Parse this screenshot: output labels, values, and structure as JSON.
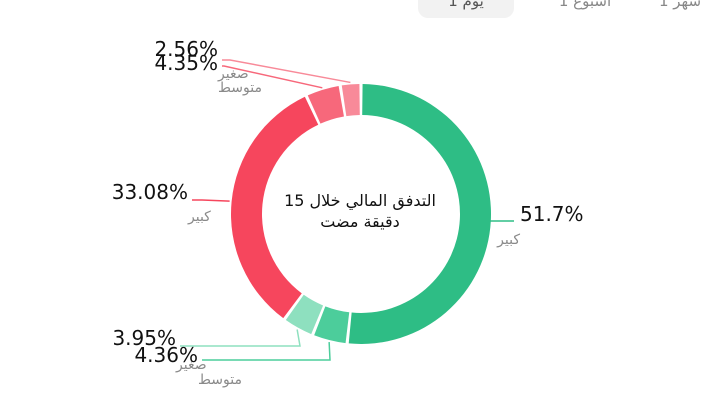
{
  "time_tabs": [
    {
      "label": "1 يوم",
      "active": true
    },
    {
      "label": "1 أسبوع",
      "active": false
    },
    {
      "label": "1 شهر",
      "active": false
    }
  ],
  "chart_data": {
    "type": "pie",
    "donut": true,
    "center_text": [
      "التدفق المالي خلال 15",
      "دقيقة مضت"
    ],
    "slices": [
      {
        "key": "inflow_large",
        "value": 51.7,
        "label": "51.7%",
        "category": "كبير",
        "color": "#2ebd85"
      },
      {
        "key": "inflow_medium",
        "value": 4.36,
        "label": "4.36%",
        "category": "متوسط",
        "color": "#4ccd9b"
      },
      {
        "key": "inflow_small",
        "value": 3.95,
        "label": "3.95%",
        "category": "صغير",
        "color": "#8ee0bf"
      },
      {
        "key": "outflow_large",
        "value": 33.08,
        "label": "33.08%",
        "category": "كبير",
        "color": "#f6465d"
      },
      {
        "key": "outflow_medium",
        "value": 4.35,
        "label": "4.35%",
        "category": "متوسط",
        "color": "#f7687b"
      },
      {
        "key": "outflow_small",
        "value": 2.56,
        "label": "2.56%",
        "category": "صغير",
        "color": "#f88a99"
      }
    ]
  }
}
